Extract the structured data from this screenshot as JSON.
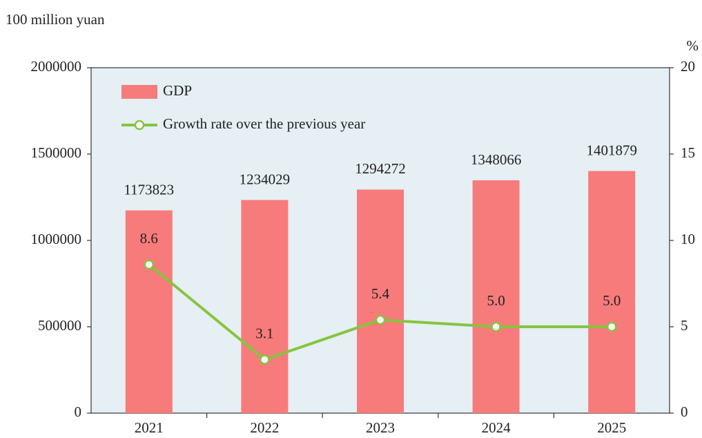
{
  "chart_data": {
    "type": "bar_line",
    "y_label": "100 million yuan",
    "y2_label": "%",
    "categories": [
      "2021",
      "2022",
      "2023",
      "2024",
      "2025"
    ],
    "series": [
      {
        "name": "GDP",
        "type": "bar",
        "color": "#f77b7b",
        "values": [
          1173823,
          1234029,
          1294272,
          1348066,
          1401879
        ]
      },
      {
        "name": "Growth rate over the previous year",
        "type": "line",
        "axis": "y2",
        "color": "#86c440",
        "values": [
          8.6,
          3.1,
          5.4,
          5.0,
          5.0
        ],
        "value_labels": [
          "8.6",
          "3.1",
          "5.4",
          "5.0",
          "5.0"
        ]
      }
    ],
    "ylim": [
      0,
      2000000
    ],
    "yticks": [
      0,
      500000,
      1000000,
      1500000,
      2000000
    ],
    "y2lim": [
      0,
      20
    ],
    "y2ticks": [
      0,
      5,
      10,
      15,
      20
    ],
    "background": "#e5eff4",
    "legend": "top-left"
  }
}
